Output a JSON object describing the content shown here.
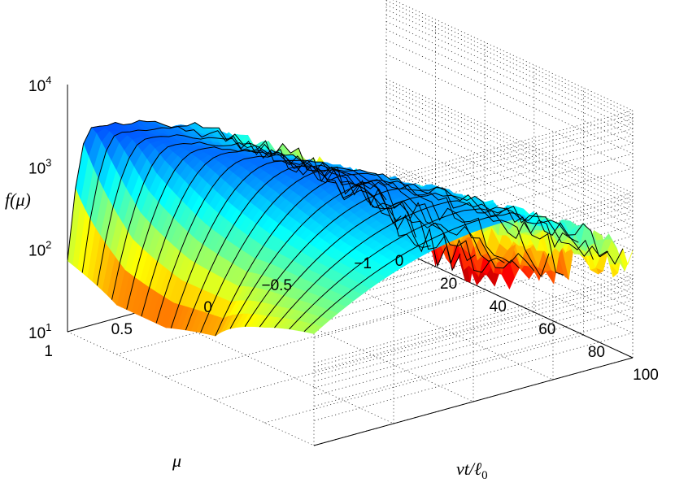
{
  "chart_data": {
    "type": "surface",
    "title": "",
    "xlabel": "vt/ℓ",
    "xlabel_sub": "0",
    "ylabel": "μ",
    "zlabel_fn": "f(",
    "zlabel_var": "μ",
    "zlabel_close": ")",
    "zscale": "log",
    "grid": true,
    "colormap": "jet",
    "x_ticks": [
      "0",
      "20",
      "40",
      "60",
      "80",
      "100"
    ],
    "y_ticks": [
      "1",
      "0.5",
      "0",
      "−0.5",
      "−1"
    ],
    "z_ticks": [
      {
        "base": "10",
        "exp": "1"
      },
      {
        "base": "10",
        "exp": "2"
      },
      {
        "base": "10",
        "exp": "3"
      },
      {
        "base": "10",
        "exp": "4"
      }
    ],
    "xlim": [
      0,
      100
    ],
    "ylim": [
      -1,
      1
    ],
    "zlim": [
      10,
      10000
    ],
    "series": [
      {
        "vt_over_l0": 0,
        "peak_mu": 0.85,
        "peak_f": 2500,
        "min_f": 30
      },
      {
        "vt_over_l0": 20,
        "peak_mu": 0.6,
        "peak_f": 2000,
        "min_f": 15
      },
      {
        "vt_over_l0": 40,
        "peak_mu": 0.4,
        "peak_f": 2000,
        "min_f": 15
      },
      {
        "vt_over_l0": 60,
        "peak_mu": 0.2,
        "peak_f": 2000,
        "min_f": 25
      },
      {
        "vt_over_l0": 80,
        "peak_mu": 0.0,
        "peak_f": 1500,
        "min_f": 80
      },
      {
        "vt_over_l0": 100,
        "peak_mu": -0.2,
        "peak_f": 1200,
        "min_f": 150
      }
    ]
  }
}
